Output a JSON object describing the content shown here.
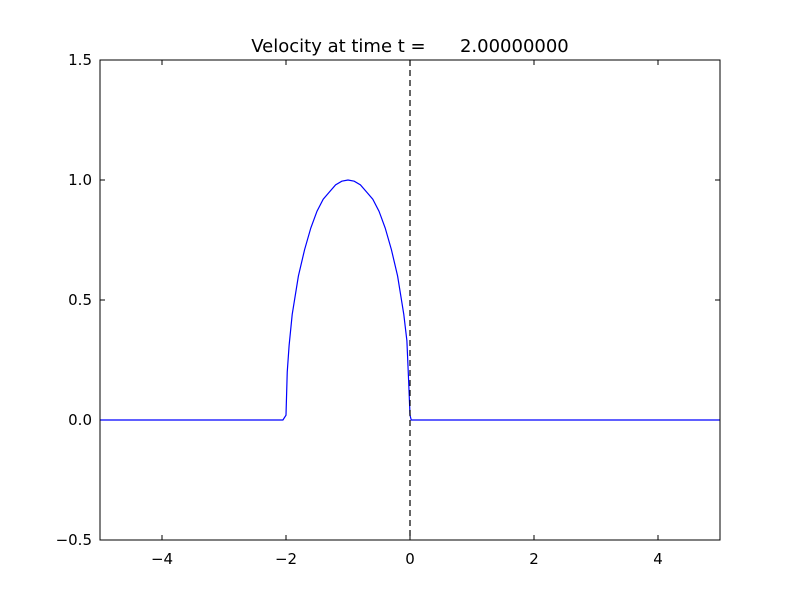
{
  "chart_data": {
    "type": "line",
    "title": "Velocity at time t =      2.00000000",
    "x": [
      -5,
      -2.1,
      -2.05,
      -2,
      -1.98,
      -1.95,
      -1.9,
      -1.8,
      -1.7,
      -1.6,
      -1.5,
      -1.4,
      -1.3,
      -1.2,
      -1.1,
      -1,
      -0.9,
      -0.8,
      -0.7,
      -0.6,
      -0.5,
      -0.4,
      -0.3,
      -0.2,
      -0.1,
      -0.05,
      -0.02,
      0,
      0.02,
      5
    ],
    "series": [
      {
        "color": "#0000ff",
        "values": [
          0,
          0,
          0,
          0.02,
          0.2,
          0.31,
          0.44,
          0.6,
          0.71,
          0.8,
          0.87,
          0.92,
          0.95,
          0.98,
          0.995,
          1,
          0.995,
          0.98,
          0.95,
          0.92,
          0.87,
          0.8,
          0.71,
          0.6,
          0.44,
          0.33,
          0.15,
          0.02,
          0,
          0
        ]
      }
    ],
    "vline": 0,
    "vline_color": "#000000",
    "xlim": [
      -5,
      5
    ],
    "ylim": [
      -0.5,
      1.5
    ],
    "xticks": [
      {
        "value": -4,
        "label": "−4"
      },
      {
        "value": -2,
        "label": "−2"
      },
      0,
      2,
      4
    ],
    "yticks": [
      {
        "value": -0.5,
        "label": "−0.5"
      },
      {
        "value": 0,
        "label": "0.0"
      },
      0.5,
      {
        "value": 1,
        "label": "1.0"
      },
      1.5
    ],
    "grid": false
  }
}
